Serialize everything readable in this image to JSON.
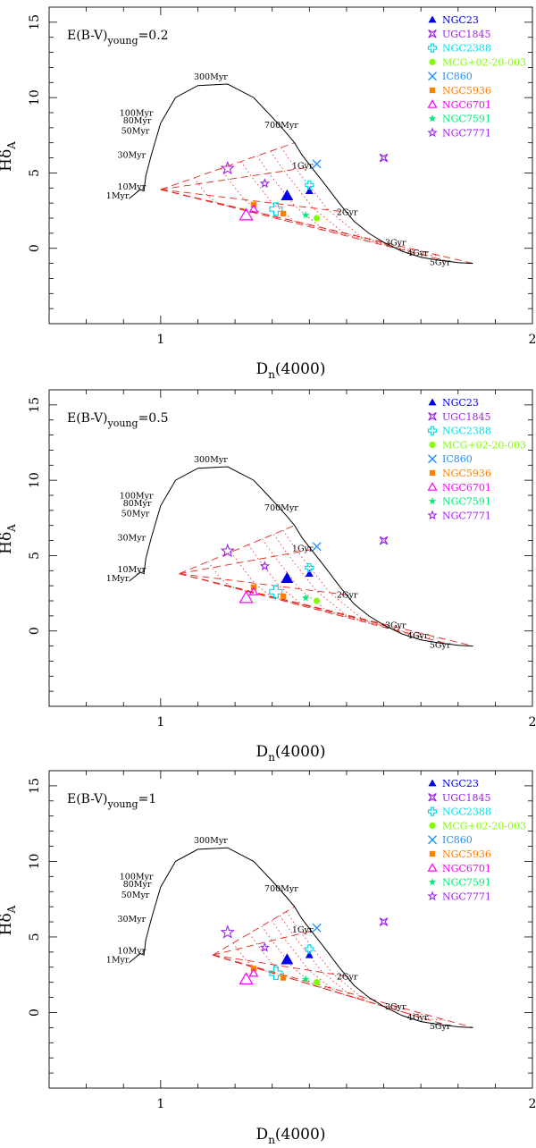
{
  "chart_data": [
    {
      "type": "scatter",
      "title": "",
      "annotation": "E(B-V)young=0.2",
      "annotation_main": "E(B-V)",
      "annotation_sub": "young",
      "annotation_value": "=0.2",
      "xlabel": "Dn(4000)",
      "ylabel": "HδA",
      "xlim": [
        0.7,
        2.0
      ],
      "ylim": [
        -5,
        16
      ],
      "x_ticks": [
        "1",
        "2"
      ],
      "y_ticks": [
        "0",
        "5",
        "10",
        "15"
      ],
      "grid": false,
      "legend_position": "top-right",
      "young_start": [
        1.0,
        3.9
      ],
      "ssp_track": {
        "x": [
          0.915,
          0.945,
          0.955,
          0.96,
          0.975,
          1.0,
          1.04,
          1.1,
          1.18,
          1.25,
          1.3,
          1.34,
          1.36,
          1.38,
          1.405,
          1.44,
          1.48,
          1.52,
          1.56,
          1.6,
          1.65,
          1.7,
          1.75,
          1.8,
          1.84
        ],
        "y": [
          3.3,
          3.9,
          3.8,
          4.8,
          6.2,
          8.3,
          10.0,
          10.8,
          10.9,
          10.0,
          8.7,
          7.6,
          7.0,
          6.2,
          5.4,
          4.3,
          3.0,
          1.8,
          1.0,
          0.4,
          -0.2,
          -0.6,
          -0.8,
          -0.95,
          -1.0
        ]
      },
      "age_labels": [
        {
          "text": "1Myr",
          "x": 0.915,
          "y": 3.3
        },
        {
          "text": "10Myr",
          "x": 0.96,
          "y": 3.9
        },
        {
          "text": "30Myr",
          "x": 0.96,
          "y": 6.0
        },
        {
          "text": "50Myr",
          "x": 0.97,
          "y": 7.6
        },
        {
          "text": "80Myr",
          "x": 0.975,
          "y": 8.3
        },
        {
          "text": "100Myr",
          "x": 0.98,
          "y": 8.8
        },
        {
          "text": "300Myr",
          "x": 1.18,
          "y": 11.2
        },
        {
          "text": "700Myr",
          "x": 1.37,
          "y": 8.0
        },
        {
          "text": "1Gyr",
          "x": 1.41,
          "y": 5.3
        },
        {
          "text": "2Gyr",
          "x": 1.53,
          "y": 2.2
        },
        {
          "text": "3Gyr",
          "x": 1.66,
          "y": 0.2
        },
        {
          "text": "4Gyr",
          "x": 1.72,
          "y": -0.5
        },
        {
          "text": "5Gyr",
          "x": 1.78,
          "y": -1.1
        }
      ],
      "series": [
        {
          "name": "NGC23",
          "color": "#0000ee",
          "marker": "filled-triangle",
          "points": [
            [
              1.34,
              3.5
            ],
            [
              1.4,
              3.8
            ]
          ]
        },
        {
          "name": "UGC1845",
          "color": "#a020f0",
          "marker": "square-star",
          "points": [
            [
              1.6,
              6.0
            ]
          ]
        },
        {
          "name": "NGC2388",
          "color": "#00ddee",
          "marker": "open-cross",
          "points": [
            [
              1.31,
              2.6
            ],
            [
              1.4,
              4.2
            ]
          ]
        },
        {
          "name": "MCG+02-20-003",
          "color": "#7fff00",
          "marker": "filled-circle",
          "points": [
            [
              1.42,
              2.0
            ]
          ]
        },
        {
          "name": "IC860",
          "color": "#1e90ff",
          "marker": "cross",
          "points": [
            [
              1.42,
              5.6
            ]
          ]
        },
        {
          "name": "NGC5936",
          "color": "#ff7f00",
          "marker": "filled-square",
          "points": [
            [
              1.33,
              2.3
            ],
            [
              1.25,
              2.9
            ]
          ]
        },
        {
          "name": "NGC6701",
          "color": "#ff00ff",
          "marker": "open-triangle",
          "points": [
            [
              1.23,
              2.2
            ],
            [
              1.25,
              2.6
            ]
          ]
        },
        {
          "name": "NGC7591",
          "color": "#00ee76",
          "marker": "filled-star",
          "points": [
            [
              1.39,
              2.2
            ]
          ]
        },
        {
          "name": "NGC7771",
          "color": "#a020f0",
          "marker": "open-star",
          "points": [
            [
              1.18,
              5.3
            ],
            [
              1.28,
              4.3
            ]
          ]
        }
      ]
    },
    {
      "type": "scatter",
      "title": "",
      "annotation": "E(B-V)young=0.5",
      "annotation_main": "E(B-V)",
      "annotation_sub": "young",
      "annotation_value": "=0.5",
      "xlabel": "Dn(4000)",
      "ylabel": "HδA",
      "xlim": [
        0.7,
        2.0
      ],
      "ylim": [
        -5,
        16
      ],
      "x_ticks": [
        "1",
        "2"
      ],
      "y_ticks": [
        "0",
        "5",
        "10",
        "15"
      ],
      "grid": false,
      "legend_position": "top-right",
      "young_start": [
        1.05,
        3.8
      ],
      "ssp_track": {
        "x": [
          0.915,
          0.945,
          0.955,
          0.96,
          0.975,
          1.0,
          1.04,
          1.1,
          1.18,
          1.25,
          1.3,
          1.34,
          1.36,
          1.38,
          1.405,
          1.44,
          1.48,
          1.52,
          1.56,
          1.6,
          1.65,
          1.7,
          1.75,
          1.8,
          1.84
        ],
        "y": [
          3.3,
          3.9,
          3.8,
          4.8,
          6.2,
          8.3,
          10.0,
          10.8,
          10.9,
          10.0,
          8.7,
          7.6,
          7.0,
          6.2,
          5.4,
          4.3,
          3.0,
          1.8,
          1.0,
          0.4,
          -0.2,
          -0.6,
          -0.8,
          -0.95,
          -1.0
        ]
      },
      "age_labels": [
        {
          "text": "1Myr",
          "x": 0.915,
          "y": 3.3
        },
        {
          "text": "10Myr",
          "x": 0.96,
          "y": 3.9
        },
        {
          "text": "30Myr",
          "x": 0.96,
          "y": 6.0
        },
        {
          "text": "50Myr",
          "x": 0.97,
          "y": 7.6
        },
        {
          "text": "80Myr",
          "x": 0.975,
          "y": 8.3
        },
        {
          "text": "100Myr",
          "x": 0.98,
          "y": 8.8
        },
        {
          "text": "300Myr",
          "x": 1.18,
          "y": 11.2
        },
        {
          "text": "700Myr",
          "x": 1.37,
          "y": 8.0
        },
        {
          "text": "1Gyr",
          "x": 1.41,
          "y": 5.3
        },
        {
          "text": "2Gyr",
          "x": 1.53,
          "y": 2.2
        },
        {
          "text": "3Gyr",
          "x": 1.66,
          "y": 0.2
        },
        {
          "text": "4Gyr",
          "x": 1.72,
          "y": -0.5
        },
        {
          "text": "5Gyr",
          "x": 1.78,
          "y": -1.1
        }
      ],
      "series": [
        {
          "name": "NGC23",
          "color": "#0000ee",
          "marker": "filled-triangle",
          "points": [
            [
              1.34,
              3.5
            ],
            [
              1.4,
              3.8
            ]
          ]
        },
        {
          "name": "UGC1845",
          "color": "#a020f0",
          "marker": "square-star",
          "points": [
            [
              1.6,
              6.0
            ]
          ]
        },
        {
          "name": "NGC2388",
          "color": "#00ddee",
          "marker": "open-cross",
          "points": [
            [
              1.31,
              2.6
            ],
            [
              1.4,
              4.2
            ]
          ]
        },
        {
          "name": "MCG+02-20-003",
          "color": "#7fff00",
          "marker": "filled-circle",
          "points": [
            [
              1.42,
              2.0
            ]
          ]
        },
        {
          "name": "IC860",
          "color": "#1e90ff",
          "marker": "cross",
          "points": [
            [
              1.42,
              5.6
            ]
          ]
        },
        {
          "name": "NGC5936",
          "color": "#ff7f00",
          "marker": "filled-square",
          "points": [
            [
              1.33,
              2.3
            ],
            [
              1.25,
              2.9
            ]
          ]
        },
        {
          "name": "NGC6701",
          "color": "#ff00ff",
          "marker": "open-triangle",
          "points": [
            [
              1.23,
              2.2
            ],
            [
              1.25,
              2.6
            ]
          ]
        },
        {
          "name": "NGC7591",
          "color": "#00ee76",
          "marker": "filled-star",
          "points": [
            [
              1.39,
              2.2
            ]
          ]
        },
        {
          "name": "NGC7771",
          "color": "#a020f0",
          "marker": "open-star",
          "points": [
            [
              1.18,
              5.3
            ],
            [
              1.28,
              4.3
            ]
          ]
        }
      ]
    },
    {
      "type": "scatter",
      "title": "",
      "annotation": "E(B-V)young=1",
      "annotation_main": "E(B-V)",
      "annotation_sub": "young",
      "annotation_value": "=1",
      "xlabel": "Dn(4000)",
      "ylabel": "HδA",
      "xlim": [
        0.7,
        2.0
      ],
      "ylim": [
        -5,
        16
      ],
      "x_ticks": [
        "1",
        "2"
      ],
      "y_ticks": [
        "0",
        "5",
        "10",
        "15"
      ],
      "grid": false,
      "legend_position": "top-right",
      "young_start": [
        1.14,
        3.8
      ],
      "ssp_track": {
        "x": [
          0.915,
          0.945,
          0.955,
          0.96,
          0.975,
          1.0,
          1.04,
          1.1,
          1.18,
          1.25,
          1.3,
          1.34,
          1.36,
          1.38,
          1.405,
          1.44,
          1.48,
          1.52,
          1.56,
          1.6,
          1.65,
          1.7,
          1.75,
          1.8,
          1.84
        ],
        "y": [
          3.3,
          3.9,
          3.8,
          4.8,
          6.2,
          8.3,
          10.0,
          10.8,
          10.9,
          10.0,
          8.7,
          7.6,
          7.0,
          6.2,
          5.4,
          4.3,
          3.0,
          1.8,
          1.0,
          0.4,
          -0.2,
          -0.6,
          -0.8,
          -0.95,
          -1.0
        ]
      },
      "age_labels": [
        {
          "text": "1Myr",
          "x": 0.915,
          "y": 3.3
        },
        {
          "text": "10Myr",
          "x": 0.96,
          "y": 3.9
        },
        {
          "text": "30Myr",
          "x": 0.96,
          "y": 6.0
        },
        {
          "text": "50Myr",
          "x": 0.97,
          "y": 7.6
        },
        {
          "text": "80Myr",
          "x": 0.975,
          "y": 8.3
        },
        {
          "text": "100Myr",
          "x": 0.98,
          "y": 8.8
        },
        {
          "text": "300Myr",
          "x": 1.18,
          "y": 11.2
        },
        {
          "text": "700Myr",
          "x": 1.37,
          "y": 8.0
        },
        {
          "text": "1Gyr",
          "x": 1.41,
          "y": 5.3
        },
        {
          "text": "2Gyr",
          "x": 1.53,
          "y": 2.2
        },
        {
          "text": "3Gyr",
          "x": 1.66,
          "y": 0.2
        },
        {
          "text": "4Gyr",
          "x": 1.72,
          "y": -0.5
        },
        {
          "text": "5Gyr",
          "x": 1.78,
          "y": -1.1
        }
      ],
      "series": [
        {
          "name": "NGC23",
          "color": "#0000ee",
          "marker": "filled-triangle",
          "points": [
            [
              1.34,
              3.5
            ],
            [
              1.4,
              3.8
            ]
          ]
        },
        {
          "name": "UGC1845",
          "color": "#a020f0",
          "marker": "square-star",
          "points": [
            [
              1.6,
              6.0
            ]
          ]
        },
        {
          "name": "NGC2388",
          "color": "#00ddee",
          "marker": "open-cross",
          "points": [
            [
              1.31,
              2.6
            ],
            [
              1.4,
              4.2
            ]
          ]
        },
        {
          "name": "MCG+02-20-003",
          "color": "#7fff00",
          "marker": "filled-circle",
          "points": [
            [
              1.42,
              2.0
            ]
          ]
        },
        {
          "name": "IC860",
          "color": "#1e90ff",
          "marker": "cross",
          "points": [
            [
              1.42,
              5.6
            ]
          ]
        },
        {
          "name": "NGC5936",
          "color": "#ff7f00",
          "marker": "filled-square",
          "points": [
            [
              1.33,
              2.3
            ],
            [
              1.25,
              2.9
            ]
          ]
        },
        {
          "name": "NGC6701",
          "color": "#ff00ff",
          "marker": "open-triangle",
          "points": [
            [
              1.23,
              2.2
            ],
            [
              1.25,
              2.6
            ]
          ]
        },
        {
          "name": "NGC7591",
          "color": "#00ee76",
          "marker": "filled-star",
          "points": [
            [
              1.39,
              2.2
            ]
          ]
        },
        {
          "name": "NGC7771",
          "color": "#a020f0",
          "marker": "open-star",
          "points": [
            [
              1.18,
              5.3
            ],
            [
              1.28,
              4.3
            ]
          ]
        }
      ]
    }
  ]
}
